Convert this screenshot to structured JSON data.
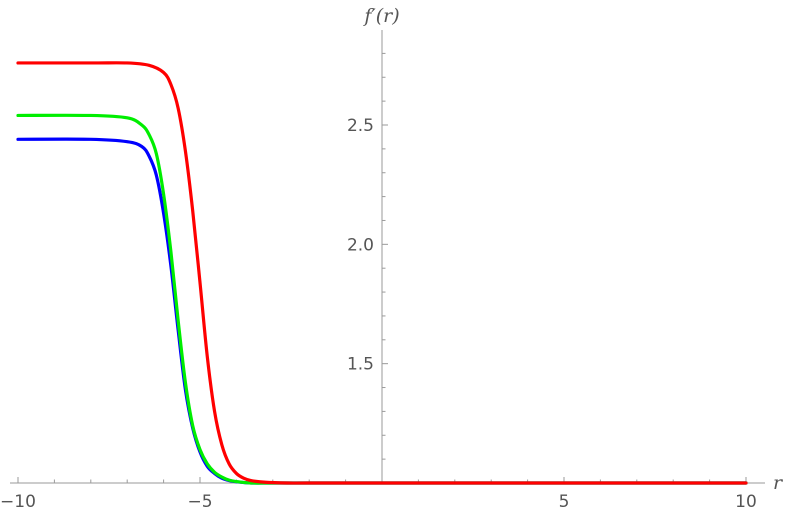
{
  "chart_data": {
    "type": "line",
    "xlabel": "r",
    "ylabel": "f′(r)",
    "xlim": [
      -10,
      10
    ],
    "ylim": [
      0.97,
      2.8
    ],
    "x_axis_crossing_y": 1.0,
    "y_axis_crossing_x": 0,
    "x_ticks": [
      -10,
      -5,
      5,
      10
    ],
    "x_tick_labels": [
      "−10",
      "−5",
      "5",
      "10"
    ],
    "y_ticks": [
      1.5,
      2.0,
      2.5
    ],
    "y_tick_labels": [
      "1.5",
      "2.0",
      "2.5"
    ],
    "grid": false,
    "legend": "none",
    "series": [
      {
        "color": "#0000ff",
        "x": [
          -10,
          -8,
          -7,
          -6.6,
          -6.4,
          -6.2,
          -6.0,
          -5.8,
          -5.6,
          -5.4,
          -5.2,
          -5.0,
          -4.8,
          -4.6,
          -4.4,
          -4.2,
          -4.0,
          -3.6,
          -3.0,
          -2.0,
          0,
          5,
          10
        ],
        "y": [
          2.44,
          2.44,
          2.43,
          2.41,
          2.37,
          2.29,
          2.13,
          1.91,
          1.64,
          1.39,
          1.23,
          1.13,
          1.07,
          1.04,
          1.02,
          1.01,
          1.005,
          1.0,
          1.0,
          1.0,
          1.0,
          1.0,
          1.0
        ]
      },
      {
        "color": "#00ee00",
        "x": [
          -10,
          -8,
          -7,
          -6.6,
          -6.4,
          -6.2,
          -6.0,
          -5.8,
          -5.6,
          -5.4,
          -5.2,
          -5.0,
          -4.8,
          -4.6,
          -4.4,
          -4.2,
          -4.0,
          -3.6,
          -3.0,
          -2.0,
          0,
          5,
          10
        ],
        "y": [
          2.54,
          2.54,
          2.53,
          2.5,
          2.46,
          2.38,
          2.21,
          1.97,
          1.68,
          1.42,
          1.24,
          1.14,
          1.08,
          1.045,
          1.025,
          1.012,
          1.006,
          1.0,
          1.0,
          1.0,
          1.0,
          1.0,
          1.0
        ]
      },
      {
        "color": "#ff0000",
        "x": [
          -10,
          -8,
          -7,
          -6.4,
          -6.0,
          -5.8,
          -5.6,
          -5.4,
          -5.2,
          -5.0,
          -4.8,
          -4.6,
          -4.4,
          -4.2,
          -4.0,
          -3.8,
          -3.6,
          -3.2,
          -2.6,
          -2.0,
          0,
          5,
          10
        ],
        "y": [
          2.76,
          2.76,
          2.76,
          2.75,
          2.72,
          2.67,
          2.57,
          2.39,
          2.14,
          1.84,
          1.53,
          1.3,
          1.16,
          1.08,
          1.04,
          1.02,
          1.01,
          1.003,
          1.0,
          1.0,
          1.0,
          1.0,
          1.0
        ]
      }
    ]
  }
}
